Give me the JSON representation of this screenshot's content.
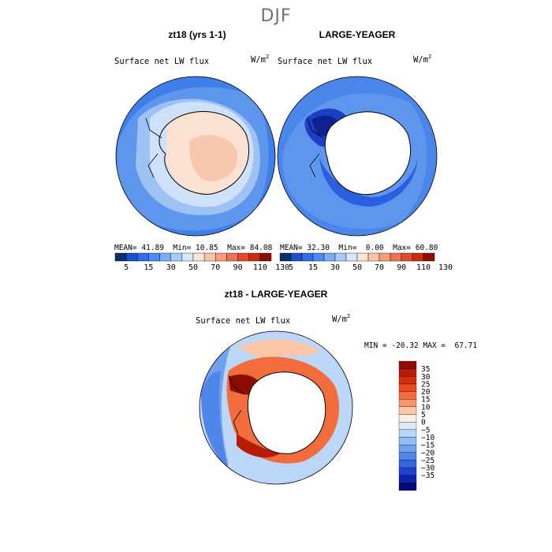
{
  "figure": {
    "title": "DJF"
  },
  "chart_data": [
    {
      "type": "heatmap",
      "title": "zt18 (yrs 1-1)",
      "variable_label": "Surface net LW flux",
      "units": "W/m",
      "units_power": "2",
      "stats": {
        "mean_label": "MEAN=",
        "mean": "41.89",
        "min_label": "Min=",
        "min": "10.85",
        "max_label": "Max=",
        "max": "84.08"
      },
      "colorbar": {
        "ticks": [
          "5",
          "15",
          "30",
          "50",
          "70",
          "90",
          "110",
          "130"
        ],
        "colors": [
          "#08306b",
          "#1c4fc9",
          "#2f6ee6",
          "#4a8cf2",
          "#79aef7",
          "#a9cbf7",
          "#d6e6fb",
          "#fbe3d6",
          "#f7c4a9",
          "#f29e7a",
          "#ec7350",
          "#e34a2a",
          "#c92d10",
          "#8f0c03"
        ]
      }
    },
    {
      "type": "heatmap",
      "title": "LARGE-YEAGER",
      "variable_label": "Surface net LW flux",
      "units": "W/m",
      "units_power": "2",
      "stats": {
        "mean_label": "MEAN=",
        "mean": "32.30",
        "min_label": "Min=",
        "min": "0.00",
        "max_label": "Max=",
        "max": "60.80"
      },
      "colorbar": {
        "ticks": [
          "5",
          "15",
          "30",
          "50",
          "70",
          "90",
          "110",
          "130"
        ],
        "colors": [
          "#08306b",
          "#1c4fc9",
          "#2f6ee6",
          "#4a8cf2",
          "#79aef7",
          "#a9cbf7",
          "#d6e6fb",
          "#fbe3d6",
          "#f7c4a9",
          "#f29e7a",
          "#ec7350",
          "#e34a2a",
          "#c92d10",
          "#8f0c03"
        ]
      }
    },
    {
      "type": "heatmap",
      "title": "zt18 - LARGE-YEAGER",
      "variable_label": "Surface net LW flux",
      "units": "W/m",
      "units_power": "2",
      "stats": {
        "min_label": "MIN =",
        "min": "-20.32",
        "max_label": "MAX =",
        "max": "67.71"
      },
      "colorbar": {
        "ticks": [
          "35",
          "30",
          "25",
          "20",
          "15",
          "10",
          "5",
          "0",
          "−5",
          "−10",
          "−15",
          "−20",
          "−25",
          "−30",
          "−35"
        ],
        "colors": [
          "#8f0c03",
          "#b51b05",
          "#d42e0d",
          "#e84a1c",
          "#f26c3c",
          "#f7956a",
          "#fbc7a9",
          "#fdeee4",
          "#dbe9fb",
          "#b9d5f7",
          "#93bdf4",
          "#6fa2ef",
          "#4f86ea",
          "#3566e1",
          "#1e44cf",
          "#0d24b0",
          "#020a78"
        ]
      }
    }
  ]
}
